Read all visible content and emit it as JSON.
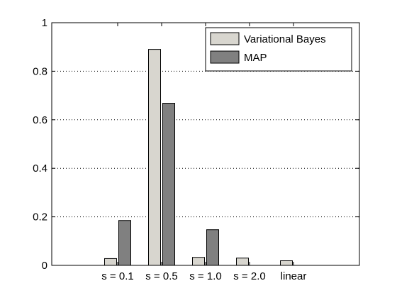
{
  "chart_data": {
    "type": "bar",
    "categories": [
      "s = 0.1",
      "s = 0.5",
      "s = 1.0",
      "s = 2.0",
      "linear"
    ],
    "series": [
      {
        "name": "Variational Bayes",
        "values": [
          0.028,
          0.89,
          0.033,
          0.03,
          0.019
        ],
        "color": "#d8d6cf"
      },
      {
        "name": "MAP",
        "values": [
          0.185,
          0.668,
          0.147,
          0,
          0
        ],
        "color": "#808080"
      }
    ],
    "ylim": [
      0,
      1
    ],
    "yticks": [
      0,
      0.2,
      0.4,
      0.6,
      0.8,
      1
    ],
    "ytick_labels": [
      "0",
      "0.2",
      "0.4",
      "0.6",
      "0.8",
      "1"
    ],
    "grid": "y-dotted",
    "legend_position": "top-right",
    "title": "",
    "xlabel": "",
    "ylabel": ""
  }
}
